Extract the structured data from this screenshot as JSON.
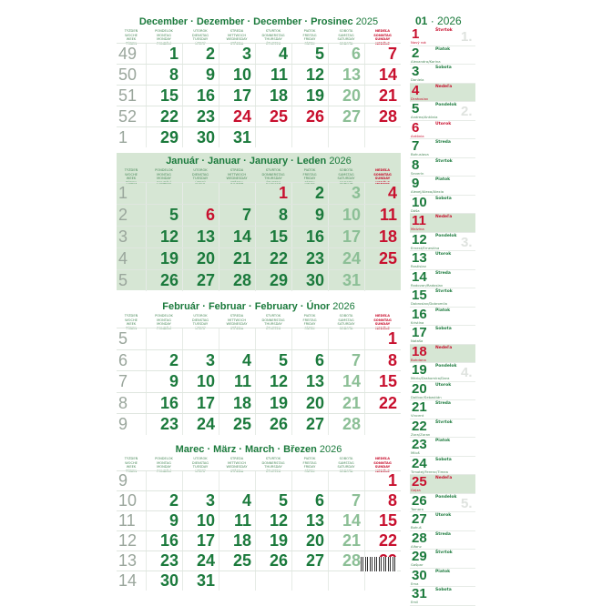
{
  "colors": {
    "green": "#1b7a3c",
    "saturday": "#8cbf96",
    "red": "#c8102e",
    "shade": "#d6e6d4",
    "weeknum": "#9aa69c"
  },
  "col_headers": [
    [
      "TÝŽDEŇ",
      "WOCHE",
      "WEEK",
      "TÝDEN"
    ],
    [
      "PONDELOK",
      "MONTAG",
      "MONDAY",
      "PONDĚLÍ"
    ],
    [
      "UTOROK",
      "DIENSTAG",
      "TUESDAY",
      "ÚTERÝ"
    ],
    [
      "STREDA",
      "MITTWOCH",
      "WEDNESDAY",
      "STŘEDA"
    ],
    [
      "ŠTVRTOK",
      "DONNERSTAG",
      "THURSDAY",
      "ČTVRTEK"
    ],
    [
      "PIATOK",
      "FREITAG",
      "FRIDAY",
      "PÁTEK"
    ],
    [
      "SOBOTA",
      "SAMSTAG",
      "SATURDAY",
      "SOBOTA"
    ],
    [
      "NEDEĽA",
      "SONNTAG",
      "SUNDAY",
      "NEDĚLE"
    ]
  ],
  "months": [
    {
      "title": "December · Dezember · December · Prosinec",
      "year": "2025",
      "shaded": false,
      "holidays": [
        24,
        25,
        26
      ],
      "weeks": [
        {
          "wk": "49",
          "days": [
            "1",
            "2",
            "3",
            "4",
            "5",
            "6",
            "7"
          ]
        },
        {
          "wk": "50",
          "days": [
            "8",
            "9",
            "10",
            "11",
            "12",
            "13",
            "14"
          ]
        },
        {
          "wk": "51",
          "days": [
            "15",
            "16",
            "17",
            "18",
            "19",
            "20",
            "21"
          ]
        },
        {
          "wk": "52",
          "days": [
            "22",
            "23",
            "24",
            "25",
            "26",
            "27",
            "28"
          ]
        },
        {
          "wk": "1",
          "days": [
            "29",
            "30",
            "31",
            "",
            "",
            "",
            ""
          ]
        }
      ]
    },
    {
      "title": "Január · Januar · January · Leden",
      "year": "2026",
      "shaded": true,
      "holidays": [
        1,
        6
      ],
      "weeks": [
        {
          "wk": "1",
          "days": [
            "",
            "",
            "",
            "1",
            "2",
            "3",
            "4"
          ]
        },
        {
          "wk": "2",
          "days": [
            "5",
            "6",
            "7",
            "8",
            "9",
            "10",
            "11"
          ]
        },
        {
          "wk": "3",
          "days": [
            "12",
            "13",
            "14",
            "15",
            "16",
            "17",
            "18"
          ]
        },
        {
          "wk": "4",
          "days": [
            "19",
            "20",
            "21",
            "22",
            "23",
            "24",
            "25"
          ]
        },
        {
          "wk": "5",
          "days": [
            "26",
            "27",
            "28",
            "29",
            "30",
            "31",
            ""
          ]
        }
      ]
    },
    {
      "title": "Február · Februar · February · Únor",
      "year": "2026",
      "shaded": false,
      "holidays": [],
      "weeks": [
        {
          "wk": "5",
          "days": [
            "",
            "",
            "",
            "",
            "",
            "",
            "1"
          ]
        },
        {
          "wk": "6",
          "days": [
            "2",
            "3",
            "4",
            "5",
            "6",
            "7",
            "8"
          ]
        },
        {
          "wk": "7",
          "days": [
            "9",
            "10",
            "11",
            "12",
            "13",
            "14",
            "15"
          ]
        },
        {
          "wk": "8",
          "days": [
            "16",
            "17",
            "18",
            "19",
            "20",
            "21",
            "22"
          ]
        },
        {
          "wk": "9",
          "days": [
            "23",
            "24",
            "25",
            "26",
            "27",
            "28",
            ""
          ]
        }
      ]
    },
    {
      "title": "Marec · März · March · Březen",
      "year": "2026",
      "shaded": false,
      "holidays": [],
      "weeks": [
        {
          "wk": "9",
          "days": [
            "",
            "",
            "",
            "",
            "",
            "",
            "1"
          ]
        },
        {
          "wk": "10",
          "days": [
            "2",
            "3",
            "4",
            "5",
            "6",
            "7",
            "8"
          ]
        },
        {
          "wk": "11",
          "days": [
            "9",
            "10",
            "11",
            "12",
            "13",
            "14",
            "15"
          ]
        },
        {
          "wk": "12",
          "days": [
            "16",
            "17",
            "18",
            "19",
            "20",
            "21",
            "22"
          ]
        },
        {
          "wk": "13",
          "days": [
            "23",
            "24",
            "25",
            "26",
            "27",
            "28",
            "29"
          ]
        },
        {
          "wk": "14",
          "days": [
            "30",
            "31",
            "",
            "",
            "",
            "",
            ""
          ]
        }
      ]
    }
  ],
  "sidebar": {
    "month": "01",
    "year": "2026",
    "days": [
      {
        "d": "1",
        "dow": "Štvrtok",
        "name": "Nový rok",
        "red": true,
        "wmark": "1."
      },
      {
        "d": "2",
        "dow": "Piatok",
        "name": "Alexandra/Karina"
      },
      {
        "d": "3",
        "dow": "Sobota",
        "name": "Daniela"
      },
      {
        "d": "4",
        "dow": "Nedeľa",
        "name": "Drahoslav",
        "red": true,
        "sun": true
      },
      {
        "d": "5",
        "dow": "Pondelok",
        "name": "Andrea/Antónia",
        "wmark": "2."
      },
      {
        "d": "6",
        "dow": "Utorok",
        "name": "Antónia",
        "red": true
      },
      {
        "d": "7",
        "dow": "Streda",
        "name": "Bohuslava"
      },
      {
        "d": "8",
        "dow": "Štvrtok",
        "name": "Severín"
      },
      {
        "d": "9",
        "dow": "Piatok",
        "name": "Alexej/Alexa/Alexia"
      },
      {
        "d": "10",
        "dow": "Sobota",
        "name": "Dáša"
      },
      {
        "d": "11",
        "dow": "Nedeľa",
        "name": "Malvína",
        "red": true,
        "sun": true
      },
      {
        "d": "12",
        "dow": "Pondelok",
        "name": "Ernest/Ernestína",
        "wmark": "3."
      },
      {
        "d": "13",
        "dow": "Utorok",
        "name": "Rastislav"
      },
      {
        "d": "14",
        "dow": "Streda",
        "name": "Radovan/Radoslav"
      },
      {
        "d": "15",
        "dow": "Štvrtok",
        "name": "Dobroslav/Dobromila"
      },
      {
        "d": "16",
        "dow": "Piatok",
        "name": "Kristína"
      },
      {
        "d": "17",
        "dow": "Sobota",
        "name": "Nataša"
      },
      {
        "d": "18",
        "dow": "Nedeľa",
        "name": "Bohdana",
        "red": true,
        "sun": true
      },
      {
        "d": "19",
        "dow": "Pondelok",
        "name": "Mário/Drahomíra/Dara",
        "wmark": "4."
      },
      {
        "d": "20",
        "dow": "Utorok",
        "name": "Dalibor/Sebastián"
      },
      {
        "d": "21",
        "dow": "Streda",
        "name": "Vincent"
      },
      {
        "d": "22",
        "dow": "Štvrtok",
        "name": "Zora/Zoran"
      },
      {
        "d": "23",
        "dow": "Piatok",
        "name": "Miloš"
      },
      {
        "d": "24",
        "dow": "Sobota",
        "name": "Timotej/Ferenc/Timea"
      },
      {
        "d": "25",
        "dow": "Nedeľa",
        "name": "Gejza",
        "red": true,
        "sun": true
      },
      {
        "d": "26",
        "dow": "Pondelok",
        "name": "Tamara",
        "wmark": "5."
      },
      {
        "d": "27",
        "dow": "Utorok",
        "name": "Bohuš"
      },
      {
        "d": "28",
        "dow": "Streda",
        "name": "Alfonz"
      },
      {
        "d": "29",
        "dow": "Štvrtok",
        "name": "Gašpar"
      },
      {
        "d": "30",
        "dow": "Piatok",
        "name": "Ema"
      },
      {
        "d": "31",
        "dow": "Sobota",
        "name": "Emil"
      }
    ]
  }
}
